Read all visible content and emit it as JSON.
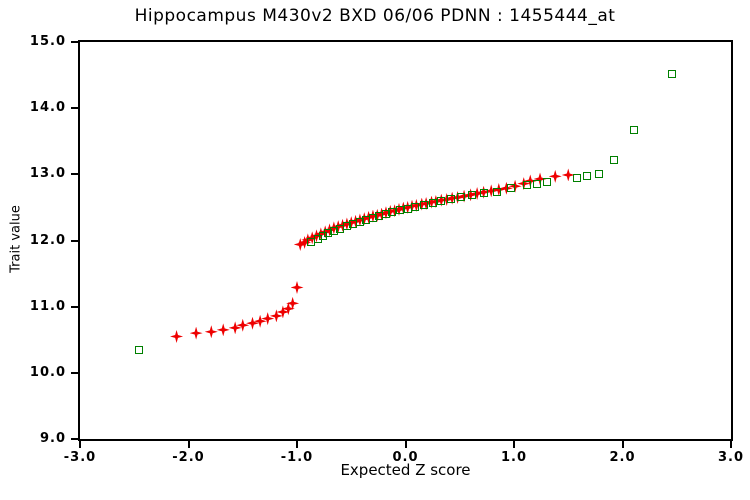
{
  "title": "Hippocampus M430v2 BXD 06/06 PDNN : 1455444_at",
  "chart_data": {
    "type": "scatter",
    "title": "Hippocampus M430v2 BXD 06/06 PDNN : 1455444_at",
    "xlabel": "Expected Z score",
    "ylabel": "Trait value",
    "xlim": [
      -3.0,
      3.0
    ],
    "ylim": [
      9.0,
      15.0
    ],
    "grid": false,
    "legend_position": "none",
    "x_ticks": [
      -3.0,
      -2.0,
      -1.0,
      0.0,
      1.0,
      2.0,
      3.0
    ],
    "y_ticks": [
      9.0,
      10.0,
      11.0,
      12.0,
      13.0,
      14.0,
      15.0
    ],
    "x_tick_labels": [
      "-3.0",
      "-2.0",
      "-1.0",
      "0.0",
      "1.0",
      "2.0",
      "3.0"
    ],
    "y_tick_labels": [
      "9.0",
      "10.0",
      "11.0",
      "12.0",
      "13.0",
      "14.0",
      "15.0"
    ],
    "series": [
      {
        "name": "trait-values-red-diamonds",
        "marker": "filled-4point-star",
        "color": "#ee0000",
        "points": [
          [
            -2.11,
            10.55
          ],
          [
            -1.93,
            10.6
          ],
          [
            -1.79,
            10.62
          ],
          [
            -1.68,
            10.65
          ],
          [
            -1.57,
            10.68
          ],
          [
            -1.5,
            10.72
          ],
          [
            -1.41,
            10.75
          ],
          [
            -1.34,
            10.78
          ],
          [
            -1.27,
            10.82
          ],
          [
            -1.19,
            10.86
          ],
          [
            -1.13,
            10.92
          ],
          [
            -1.08,
            10.97
          ],
          [
            -1.04,
            11.05
          ],
          [
            -1.0,
            11.29
          ],
          [
            -0.97,
            11.94
          ],
          [
            -0.93,
            11.97
          ],
          [
            -0.9,
            12.01
          ],
          [
            -0.86,
            12.04
          ],
          [
            -0.82,
            12.07
          ],
          [
            -0.78,
            12.1
          ],
          [
            -0.74,
            12.13
          ],
          [
            -0.7,
            12.16
          ],
          [
            -0.66,
            12.19
          ],
          [
            -0.62,
            12.21
          ],
          [
            -0.58,
            12.23
          ],
          [
            -0.54,
            12.25
          ],
          [
            -0.5,
            12.27
          ],
          [
            -0.46,
            12.29
          ],
          [
            -0.42,
            12.31
          ],
          [
            -0.38,
            12.33
          ],
          [
            -0.34,
            12.35
          ],
          [
            -0.3,
            12.37
          ],
          [
            -0.26,
            12.38
          ],
          [
            -0.22,
            12.4
          ],
          [
            -0.18,
            12.42
          ],
          [
            -0.14,
            12.44
          ],
          [
            -0.1,
            12.45
          ],
          [
            -0.06,
            12.47
          ],
          [
            -0.02,
            12.49
          ],
          [
            0.02,
            12.5
          ],
          [
            0.06,
            12.52
          ],
          [
            0.1,
            12.53
          ],
          [
            0.15,
            12.55
          ],
          [
            0.19,
            12.56
          ],
          [
            0.24,
            12.58
          ],
          [
            0.28,
            12.59
          ],
          [
            0.33,
            12.61
          ],
          [
            0.38,
            12.62
          ],
          [
            0.43,
            12.64
          ],
          [
            0.48,
            12.65
          ],
          [
            0.54,
            12.67
          ],
          [
            0.6,
            12.69
          ],
          [
            0.66,
            12.71
          ],
          [
            0.72,
            12.73
          ],
          [
            0.79,
            12.75
          ],
          [
            0.86,
            12.77
          ],
          [
            0.93,
            12.79
          ],
          [
            1.01,
            12.82
          ],
          [
            1.09,
            12.86
          ],
          [
            1.15,
            12.9
          ],
          [
            1.24,
            12.93
          ],
          [
            1.38,
            12.97
          ],
          [
            1.5,
            12.99
          ]
        ]
      },
      {
        "name": "trait-values-green-open-squares",
        "marker": "open-square",
        "color": "#008000",
        "points": [
          [
            -2.46,
            10.35
          ],
          [
            -0.87,
            11.98
          ],
          [
            -0.81,
            12.02
          ],
          [
            -0.76,
            12.07
          ],
          [
            -0.71,
            12.12
          ],
          [
            -0.66,
            12.15
          ],
          [
            -0.6,
            12.18
          ],
          [
            -0.54,
            12.22
          ],
          [
            -0.48,
            12.25
          ],
          [
            -0.42,
            12.28
          ],
          [
            -0.36,
            12.31
          ],
          [
            -0.3,
            12.34
          ],
          [
            -0.24,
            12.37
          ],
          [
            -0.18,
            12.4
          ],
          [
            -0.12,
            12.43
          ],
          [
            -0.05,
            12.46
          ],
          [
            0.02,
            12.48
          ],
          [
            0.09,
            12.51
          ],
          [
            0.17,
            12.54
          ],
          [
            0.25,
            12.57
          ],
          [
            0.33,
            12.6
          ],
          [
            0.42,
            12.63
          ],
          [
            0.51,
            12.66
          ],
          [
            0.61,
            12.69
          ],
          [
            0.72,
            12.72
          ],
          [
            0.84,
            12.74
          ],
          [
            0.97,
            12.79
          ],
          [
            1.12,
            12.84
          ],
          [
            1.21,
            12.86
          ],
          [
            1.3,
            12.89
          ],
          [
            1.58,
            12.94
          ],
          [
            1.67,
            12.97
          ],
          [
            1.78,
            13.0
          ],
          [
            1.92,
            13.22
          ],
          [
            2.11,
            13.67
          ],
          [
            2.46,
            14.52
          ]
        ]
      }
    ]
  }
}
